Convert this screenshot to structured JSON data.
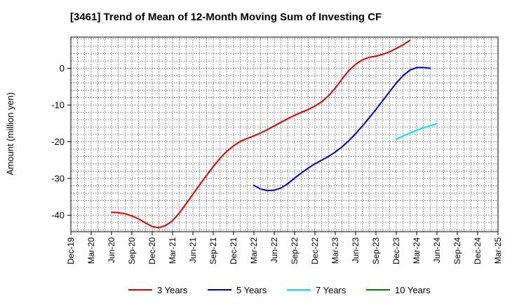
{
  "chart_data": {
    "type": "line",
    "title": "[3461]  Trend of Mean of 12-Month Moving Sum of Investing CF",
    "xlabel": "",
    "ylabel": "Amount (million yen)",
    "ylim": [
      -44.5,
      8.5
    ],
    "yticks": [
      0,
      -10,
      -20,
      -30,
      -40
    ],
    "grid": true,
    "legend_position": "bottom",
    "x_categories": [
      "Dec-19",
      "Mar-20",
      "Jun-20",
      "Sep-20",
      "Dec-20",
      "Mar-21",
      "Jun-21",
      "Sep-21",
      "Dec-21",
      "Mar-22",
      "Jun-22",
      "Sep-22",
      "Dec-22",
      "Mar-23",
      "Jun-23",
      "Sep-23",
      "Dec-23",
      "Mar-24",
      "Jun-24",
      "Sep-24",
      "Dec-24",
      "Mar-25"
    ],
    "series": [
      {
        "name": "3 Years",
        "color": "#e00000",
        "start_index": 6,
        "values": [
          -39.2,
          -39.3,
          -39.6,
          -40.2,
          -41.0,
          -42.1,
          -43.1,
          -43.4,
          -42.8,
          -41.5,
          -39.4,
          -36.9,
          -34.3,
          -31.7,
          -29.2,
          -26.8,
          -24.5,
          -22.6,
          -21.1,
          -19.9,
          -19.1,
          -18.4,
          -17.6,
          -16.7,
          -15.7,
          -14.7,
          -13.7,
          -12.8,
          -12.0,
          -11.2,
          -10.3,
          -9.1,
          -7.5,
          -5.4,
          -2.9,
          -0.6,
          1.1,
          2.3,
          3.0,
          3.3,
          3.8,
          4.5,
          5.4,
          6.4,
          7.6
        ]
      },
      {
        "name": "5 Years",
        "color": "#0000cc",
        "start_index": 27,
        "values": [
          -31.9,
          -32.9,
          -33.3,
          -33.2,
          -32.6,
          -31.4,
          -29.9,
          -28.5,
          -27.2,
          -26.0,
          -25.0,
          -24.0,
          -22.8,
          -21.4,
          -19.7,
          -17.8,
          -15.7,
          -13.5,
          -11.2,
          -8.8,
          -6.4,
          -4.0,
          -2.0,
          -0.5,
          0.2,
          0.2,
          0.0
        ]
      },
      {
        "name": "7 Years",
        "color": "#00e5ee",
        "start_index": 48,
        "values": [
          -19.3,
          -18.4,
          -17.6,
          -16.9,
          -16.2,
          -15.6,
          -15.1
        ]
      },
      {
        "name": "10 Years",
        "color": "#008000",
        "start_index": 0,
        "values": []
      }
    ]
  }
}
